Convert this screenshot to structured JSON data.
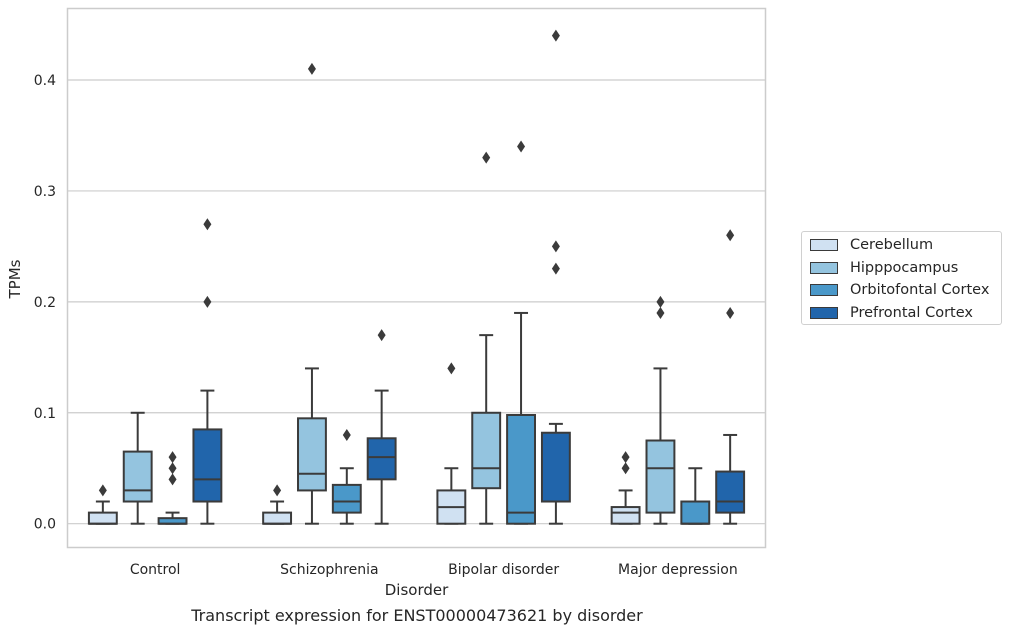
{
  "chart_data": {
    "type": "box",
    "xlabel": "Disorder",
    "ylabel": "TPMs",
    "caption": "Transcript expression for ENST00000473621 by disorder",
    "categories": [
      "Control",
      "Schizophrenia",
      "Bipolar disorder",
      "Major depression"
    ],
    "ylim": [
      -0.021,
      0.464
    ],
    "yticks": [
      0.0,
      0.1,
      0.2,
      0.3,
      0.4
    ],
    "ytick_labels": [
      "0.0",
      "0.1",
      "0.2",
      "0.3",
      "0.4"
    ],
    "grid": true,
    "legend_position": "right",
    "series": [
      {
        "name": "Cerebellum",
        "color": "#d0e1f2",
        "boxes": [
          {
            "whislo": 0.0,
            "q1": 0.0,
            "med": 0.0,
            "q3": 0.01,
            "whishi": 0.02,
            "fliers": [
              0.03
            ]
          },
          {
            "whislo": 0.0,
            "q1": 0.0,
            "med": 0.0,
            "q3": 0.01,
            "whishi": 0.02,
            "fliers": [
              0.03
            ]
          },
          {
            "whislo": 0.0,
            "q1": 0.0,
            "med": 0.015,
            "q3": 0.03,
            "whishi": 0.05,
            "fliers": [
              0.14
            ]
          },
          {
            "whislo": 0.0,
            "q1": 0.0,
            "med": 0.01,
            "q3": 0.015,
            "whishi": 0.03,
            "fliers": [
              0.05,
              0.06
            ]
          }
        ]
      },
      {
        "name": "Hipppocampus",
        "color": "#94c4df",
        "boxes": [
          {
            "whislo": 0.0,
            "q1": 0.02,
            "med": 0.03,
            "q3": 0.065,
            "whishi": 0.1,
            "fliers": []
          },
          {
            "whislo": 0.0,
            "q1": 0.03,
            "med": 0.045,
            "q3": 0.095,
            "whishi": 0.14,
            "fliers": [
              0.41
            ]
          },
          {
            "whislo": 0.0,
            "q1": 0.032,
            "med": 0.05,
            "q3": 0.1,
            "whishi": 0.17,
            "fliers": [
              0.33
            ]
          },
          {
            "whislo": 0.0,
            "q1": 0.01,
            "med": 0.05,
            "q3": 0.075,
            "whishi": 0.14,
            "fliers": [
              0.19,
              0.2
            ]
          }
        ]
      },
      {
        "name": "Orbitofontal Cortex",
        "color": "#4a98c9",
        "boxes": [
          {
            "whislo": 0.0,
            "q1": 0.0,
            "med": 0.0,
            "q3": 0.005,
            "whishi": 0.01,
            "fliers": [
              0.04,
              0.05,
              0.06
            ]
          },
          {
            "whislo": 0.0,
            "q1": 0.01,
            "med": 0.02,
            "q3": 0.035,
            "whishi": 0.05,
            "fliers": [
              0.08
            ]
          },
          {
            "whislo": 0.0,
            "q1": 0.0,
            "med": 0.01,
            "q3": 0.098,
            "whishi": 0.19,
            "fliers": [
              0.34
            ]
          },
          {
            "whislo": 0.0,
            "q1": 0.0,
            "med": 0.0,
            "q3": 0.02,
            "whishi": 0.05,
            "fliers": []
          }
        ]
      },
      {
        "name": "Prefrontal Cortex",
        "color": "#2165ab",
        "boxes": [
          {
            "whislo": 0.0,
            "q1": 0.02,
            "med": 0.04,
            "q3": 0.085,
            "whishi": 0.12,
            "fliers": [
              0.2,
              0.27
            ]
          },
          {
            "whislo": 0.0,
            "q1": 0.04,
            "med": 0.06,
            "q3": 0.077,
            "whishi": 0.12,
            "fliers": [
              0.17
            ]
          },
          {
            "whislo": 0.0,
            "q1": 0.02,
            "med": 0.02,
            "q3": 0.082,
            "whishi": 0.09,
            "fliers": [
              0.23,
              0.25,
              0.44
            ]
          },
          {
            "whislo": 0.0,
            "q1": 0.01,
            "med": 0.02,
            "q3": 0.047,
            "whishi": 0.08,
            "fliers": [
              0.19,
              0.26
            ]
          }
        ]
      }
    ]
  }
}
